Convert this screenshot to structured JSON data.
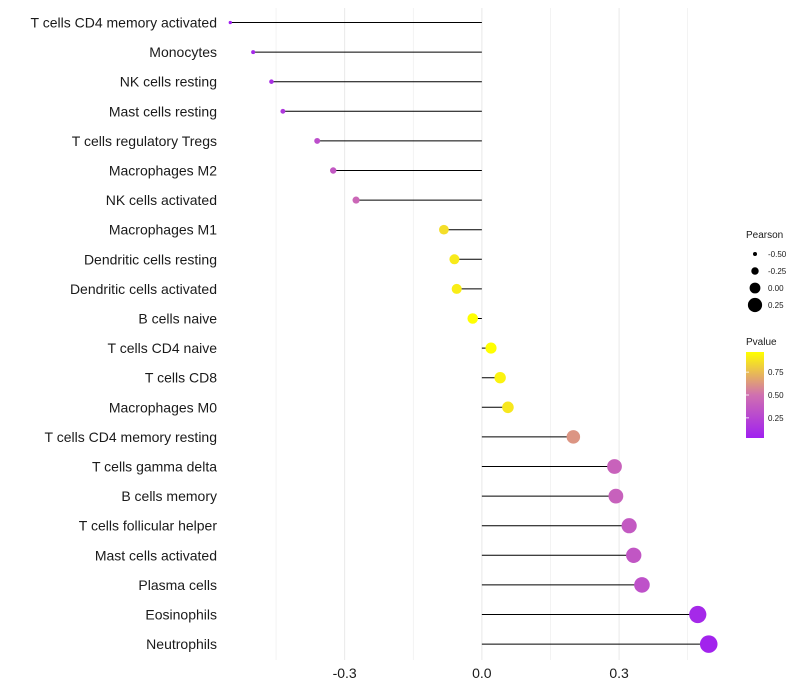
{
  "chart_data": {
    "type": "lollipop",
    "title": "",
    "xlabel": "",
    "ylabel": "",
    "xlim": [
      -0.555,
      0.525
    ],
    "x_ticks": [
      -0.3,
      0.0,
      0.3
    ],
    "x_tick_labels": [
      "-0.3",
      "0.0",
      "0.3"
    ],
    "grid": true,
    "points": [
      {
        "name": "T cells CD4 memory activated",
        "value": -0.55,
        "pvalue": 0.03
      },
      {
        "name": "Monocytes",
        "value": -0.5,
        "pvalue": 0.08
      },
      {
        "name": "NK cells resting",
        "value": -0.46,
        "pvalue": 0.12
      },
      {
        "name": "Mast cells resting",
        "value": -0.435,
        "pvalue": 0.17
      },
      {
        "name": "T cells regulatory  Tregs",
        "value": -0.36,
        "pvalue": 0.3
      },
      {
        "name": "Macrophages M2",
        "value": -0.325,
        "pvalue": 0.36
      },
      {
        "name": "NK cells activated",
        "value": -0.275,
        "pvalue": 0.45
      },
      {
        "name": "Macrophages M1",
        "value": -0.083,
        "pvalue": 0.86
      },
      {
        "name": "Dendritic cells resting",
        "value": -0.06,
        "pvalue": 0.9
      },
      {
        "name": "Dendritic cells activated",
        "value": -0.055,
        "pvalue": 0.91
      },
      {
        "name": "B cells naive",
        "value": -0.02,
        "pvalue": 0.97
      },
      {
        "name": "T cells CD4 naive",
        "value": 0.02,
        "pvalue": 0.97
      },
      {
        "name": "T cells CD8",
        "value": 0.04,
        "pvalue": 0.93
      },
      {
        "name": "Macrophages M0",
        "value": 0.057,
        "pvalue": 0.89
      },
      {
        "name": "T cells CD4 memory resting",
        "value": 0.2,
        "pvalue": 0.62
      },
      {
        "name": "T cells gamma delta",
        "value": 0.29,
        "pvalue": 0.42
      },
      {
        "name": "B cells memory",
        "value": 0.293,
        "pvalue": 0.41
      },
      {
        "name": "T cells follicular helper",
        "value": 0.322,
        "pvalue": 0.37
      },
      {
        "name": "Mast cells activated",
        "value": 0.332,
        "pvalue": 0.35
      },
      {
        "name": "Plasma cells",
        "value": 0.35,
        "pvalue": 0.32
      },
      {
        "name": "Eosinophils",
        "value": 0.472,
        "pvalue": 0.08
      },
      {
        "name": "Neutrophils",
        "value": 0.496,
        "pvalue": 0.05
      }
    ],
    "legend_size": {
      "title": "Pearson",
      "values": [
        -0.5,
        -0.25,
        0.0,
        0.25
      ],
      "labels": [
        "-0.50",
        "-0.25",
        "0.00",
        "0.25"
      ]
    },
    "legend_color": {
      "title": "Pvalue",
      "labels": [
        "0.75",
        "0.50",
        "0.25"
      ],
      "tick_values": [
        0.75,
        0.5,
        0.25
      ],
      "range": [
        0.03,
        0.97
      ],
      "low_color": "#a020f0",
      "mid_color": "#d070b0",
      "high_color": "#ffff00"
    },
    "line_color": "#000000",
    "grid_color": "#ebebeb"
  }
}
